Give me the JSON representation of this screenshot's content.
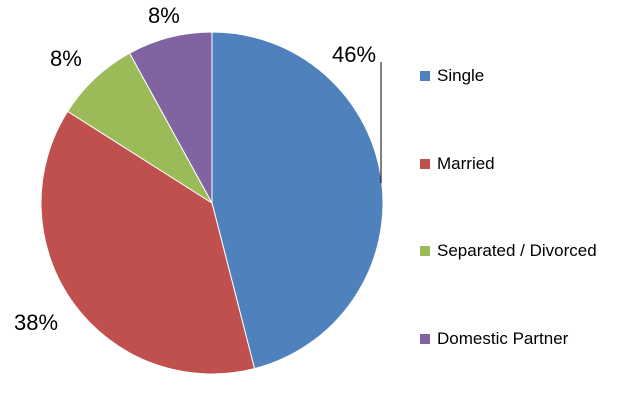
{
  "chart_data": {
    "type": "pie",
    "title": "",
    "categories": [
      "Single",
      "Married",
      "Separated / Divorced",
      "Domestic Partner"
    ],
    "values": [
      46,
      38,
      8,
      8
    ],
    "labels": [
      "46%",
      "38%",
      "8%",
      "8%"
    ],
    "colors": [
      "#4f81bd",
      "#c0504d",
      "#9bbb59",
      "#8064a2"
    ],
    "start_angle": "12 o'clock",
    "direction": "clockwise",
    "legend_position": "right"
  }
}
